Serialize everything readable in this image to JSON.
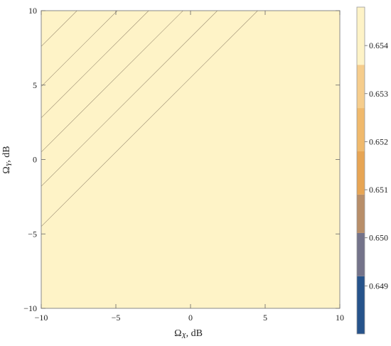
{
  "chart_data": {
    "type": "heatmap",
    "subtype": "filled-contour",
    "title": "",
    "xlabel": "ΩX, dB",
    "ylabel": "ΩY, dB",
    "xlabel_main": "Ω",
    "xlabel_sub": "X",
    "xlabel_unit": ", dB",
    "ylabel_main": "Ω",
    "ylabel_sub": "Y",
    "ylabel_unit": ", dB",
    "xlim": [
      -10,
      10
    ],
    "ylim": [
      -10,
      10
    ],
    "x_ticks": [
      -10,
      -5,
      0,
      5,
      10
    ],
    "y_ticks": [
      -10,
      -5,
      0,
      5,
      10
    ],
    "x_tick_labels": [
      "−10",
      "−5",
      "0",
      "5",
      "10"
    ],
    "y_tick_labels": [
      "−10",
      "−5",
      "0",
      "5",
      "10"
    ],
    "contour_intercepts": [
      5.5,
      8.2,
      10.5,
      12.8,
      14.9,
      17.6
    ],
    "contour_note_x_minus_y_at_level": "each contour is approx. the line Ωy = Ωx + c for the listed c",
    "levels": [
      0.6485,
      0.649,
      0.65,
      0.651,
      0.6515,
      0.652,
      0.653,
      0.654,
      0.6545
    ],
    "band_colors": [
      "#26538b",
      "#74738a",
      "#b88e69",
      "#e7a554",
      "#f0b96c",
      "#f6cd8c",
      "#fbe0ac",
      "#fef3c7"
    ],
    "colorbar": {
      "ticks": [
        0.649,
        0.65,
        0.651,
        0.652,
        0.653,
        0.654
      ],
      "tick_labels": [
        "0.649",
        "0.650",
        "0.651",
        "0.652",
        "0.653",
        "0.654"
      ],
      "range": [
        0.648,
        0.6548
      ],
      "segments": [
        {
          "from": 0.648,
          "to": 0.6492,
          "color": "#26538b"
        },
        {
          "from": 0.6492,
          "to": 0.6501,
          "color": "#74738a"
        },
        {
          "from": 0.6501,
          "to": 0.6509,
          "color": "#b88e69"
        },
        {
          "from": 0.6509,
          "to": 0.6518,
          "color": "#e7a554"
        },
        {
          "from": 0.6518,
          "to": 0.6527,
          "color": "#f0b96c"
        },
        {
          "from": 0.6527,
          "to": 0.6536,
          "color": "#f6cd8c"
        },
        {
          "from": 0.6536,
          "to": 0.6548,
          "color": "#fef3c7"
        }
      ]
    }
  }
}
